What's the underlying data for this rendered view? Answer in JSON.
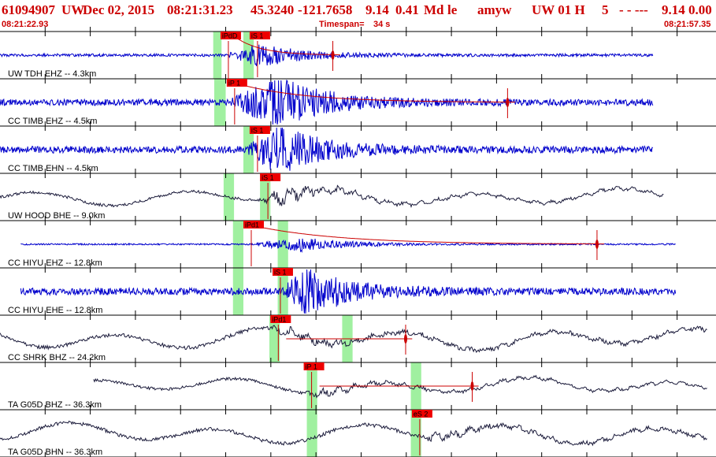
{
  "header": {
    "event_id": "61094907",
    "network": "UW",
    "date": "Dec 02, 2015",
    "origin_time": "08:21:31.23",
    "lat": "45.3240",
    "lon": "-121.7658",
    "depth": "9.14",
    "magnitude": "0.41",
    "mag_type": "Md",
    "flags": "le",
    "analyst": "amyw",
    "source": "UW 01 H",
    "count": "5",
    "dashes": "-  -  ---",
    "tail": "9.14 0.00"
  },
  "timebar": {
    "start_time": "08:21:22.93",
    "timespan_label": "Timespan=",
    "timespan_value": "34 s",
    "end_time": "08:21:57.35"
  },
  "colors": {
    "text_red": "#cc0000",
    "trace_blue": "#0000cc",
    "trace_dark": "#1a1a3a",
    "pick_box": "#ee0000",
    "pick_window": "#a0f0a0",
    "grid": "#000000"
  },
  "chart_data": {
    "type": "line",
    "title": "61094907 UW Dec 02, 2015 08:21:31.23",
    "xlabel": "",
    "ylabel": "",
    "x_unit": "seconds from 08:21:22.93",
    "xlim": [
      0,
      34.42
    ],
    "grid": true,
    "minor_ticks_every_s": 2.17,
    "traces": [
      {
        "label": "UW TDH EHZ -- 4.3km",
        "color": "trace_blue",
        "wave": "short",
        "amp": 0.22,
        "trace_start": 0.0,
        "trace_end": 31.4,
        "event_onset": 10.9,
        "event_peak": 12.4,
        "event_amp": 2.1,
        "coda": "log",
        "picks": [
          {
            "label": "iPdD",
            "t": 10.6,
            "window": [
              10.25,
              10.65
            ],
            "tick_below": true
          },
          {
            "label": "iS 1",
            "t": 12.0,
            "window": [
              11.7,
              12.2
            ]
          }
        ],
        "extra_marker": 16.0
      },
      {
        "label": "CC TIMB EHZ -- 4.5km",
        "color": "trace_blue",
        "wave": "short",
        "amp": 0.5,
        "trace_start": 0.0,
        "trace_end": 31.4,
        "event_onset": 11.0,
        "event_peak": 13.5,
        "event_amp": 2.0,
        "coda": "log",
        "picks": [
          {
            "label": "iP 1",
            "t": 10.9,
            "window": [
              10.3,
              10.85
            ]
          }
        ],
        "extra_marker": 24.4
      },
      {
        "label": "CC TIMB EHN -- 4.5km",
        "color": "trace_blue",
        "wave": "short",
        "amp": 0.55,
        "trace_start": 0.0,
        "trace_end": 31.4,
        "event_onset": 11.8,
        "event_peak": 13.3,
        "event_amp": 1.7,
        "coda": "none",
        "picks": [
          {
            "label": "iS 1",
            "t": 12.0,
            "window": [
              11.7,
              12.2
            ]
          }
        ]
      },
      {
        "label": "UW HOOD BHE -- 9.0km",
        "color": "trace_dark",
        "wave": "long",
        "amp": 0.6,
        "trace_start": 0.0,
        "trace_end": 31.9,
        "event_onset": 12.7,
        "event_peak": 13.4,
        "event_amp": 0.8,
        "coda": "none",
        "picks": [
          {
            "label": "iS 1",
            "t": 12.5,
            "window": [
              12.5,
              13.0
            ]
          },
          {
            "label": "",
            "t": 10.8,
            "window": [
              10.75,
              11.25
            ],
            "no_box": true
          }
        ]
      },
      {
        "label": "CC HIYU EHZ -- 12.8km",
        "color": "trace_blue",
        "wave": "short",
        "amp": 0.12,
        "trace_start": 1.0,
        "trace_end": 32.5,
        "event_onset": 12.0,
        "event_peak": 14.5,
        "event_amp": 2.2,
        "coda": "log",
        "picks": [
          {
            "label": "iPd1",
            "t": 11.7,
            "window": [
              11.2,
              11.7
            ]
          },
          {
            "label": "",
            "t": 13.4,
            "window": [
              13.35,
              13.85
            ],
            "no_box": true
          }
        ],
        "extra_marker": 28.7
      },
      {
        "label": "CC HIYU EHE -- 12.8km",
        "color": "trace_blue",
        "wave": "short",
        "amp": 0.55,
        "trace_start": 1.0,
        "trace_end": 32.5,
        "event_onset": 13.4,
        "event_peak": 14.8,
        "event_amp": 1.6,
        "coda": "none",
        "picks": [
          {
            "label": "iS 1",
            "t": 13.1,
            "window": [
              11.2,
              11.7
            ]
          },
          {
            "label": "",
            "t": 13.4,
            "window": [
              13.35,
              13.85
            ],
            "no_box": true
          }
        ]
      },
      {
        "label": "CC SHRK BHZ -- 24.2km",
        "color": "trace_dark",
        "wave": "long",
        "amp": 0.8,
        "trace_start": 0.0,
        "trace_end": 34.0,
        "event_onset": 13.0,
        "event_peak": 14.0,
        "event_amp": 0.3,
        "coda": "line",
        "picks": [
          {
            "label": "iPd1",
            "t": 13.0,
            "window": [
              12.95,
              13.45
            ]
          },
          {
            "label": "",
            "t": 16.5,
            "window": [
              16.45,
              16.95
            ],
            "no_box": true
          }
        ],
        "extra_marker": 19.5
      },
      {
        "label": "TA G05D BHZ -- 36.3km",
        "color": "trace_dark",
        "wave": "long",
        "amp": 0.6,
        "trace_start": 4.5,
        "trace_end": 34.0,
        "event_onset": 14.7,
        "event_peak": 15.5,
        "event_amp": 0.3,
        "coda": "line",
        "picks": [
          {
            "label": "iP 1",
            "t": 14.6,
            "window": [
              14.75,
              15.25
            ]
          },
          {
            "label": "",
            "t": 19.8,
            "window": [
              19.75,
              20.25
            ],
            "no_box": true
          }
        ],
        "extra_marker": 22.7
      },
      {
        "label": "TA G05D BHN -- 36.3km",
        "color": "trace_dark",
        "wave": "long",
        "amp": 0.75,
        "trace_start": 0.0,
        "trace_end": 34.0,
        "event_onset": 20.3,
        "event_peak": 21.0,
        "event_amp": 0.3,
        "coda": "none",
        "picks": [
          {
            "label": "eS 2",
            "t": 19.8,
            "window": [
              19.75,
              20.25
            ]
          },
          {
            "label": "",
            "t": 14.8,
            "window": [
              14.75,
              15.25
            ],
            "no_box": true
          }
        ]
      }
    ]
  }
}
